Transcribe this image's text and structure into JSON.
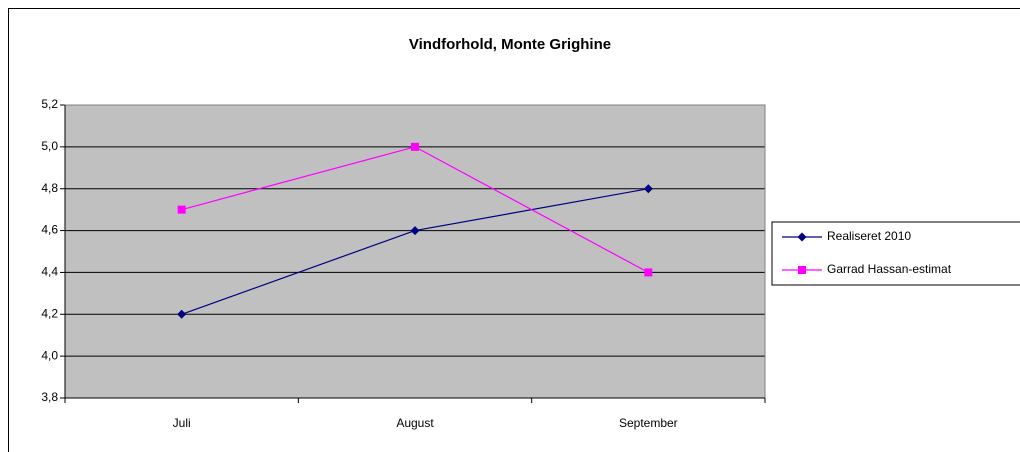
{
  "chart_data": {
    "type": "line",
    "title": "Vindforhold, Monte Grighine",
    "categories": [
      "Juli",
      "August",
      "September"
    ],
    "series": [
      {
        "name": "Realiseret 2010",
        "color": "#000080",
        "marker": "diamond",
        "values": [
          4.2,
          4.6,
          4.8
        ]
      },
      {
        "name": "Garrad Hassan-estimat",
        "color": "#ff00ff",
        "marker": "square",
        "values": [
          4.7,
          5.0,
          4.4
        ]
      }
    ],
    "ylim": [
      3.8,
      5.2
    ],
    "yticks": [
      {
        "value": 3.8,
        "label": "3,8"
      },
      {
        "value": 4.0,
        "label": "4,0"
      },
      {
        "value": 4.2,
        "label": "4,2"
      },
      {
        "value": 4.4,
        "label": "4,4"
      },
      {
        "value": 4.6,
        "label": "4,6"
      },
      {
        "value": 4.8,
        "label": "4,8"
      },
      {
        "value": 5.0,
        "label": "5,0"
      },
      {
        "value": 5.2,
        "label": "5,2"
      }
    ],
    "grid": true,
    "legend": "right",
    "plot_background": "#c0c0c0"
  }
}
